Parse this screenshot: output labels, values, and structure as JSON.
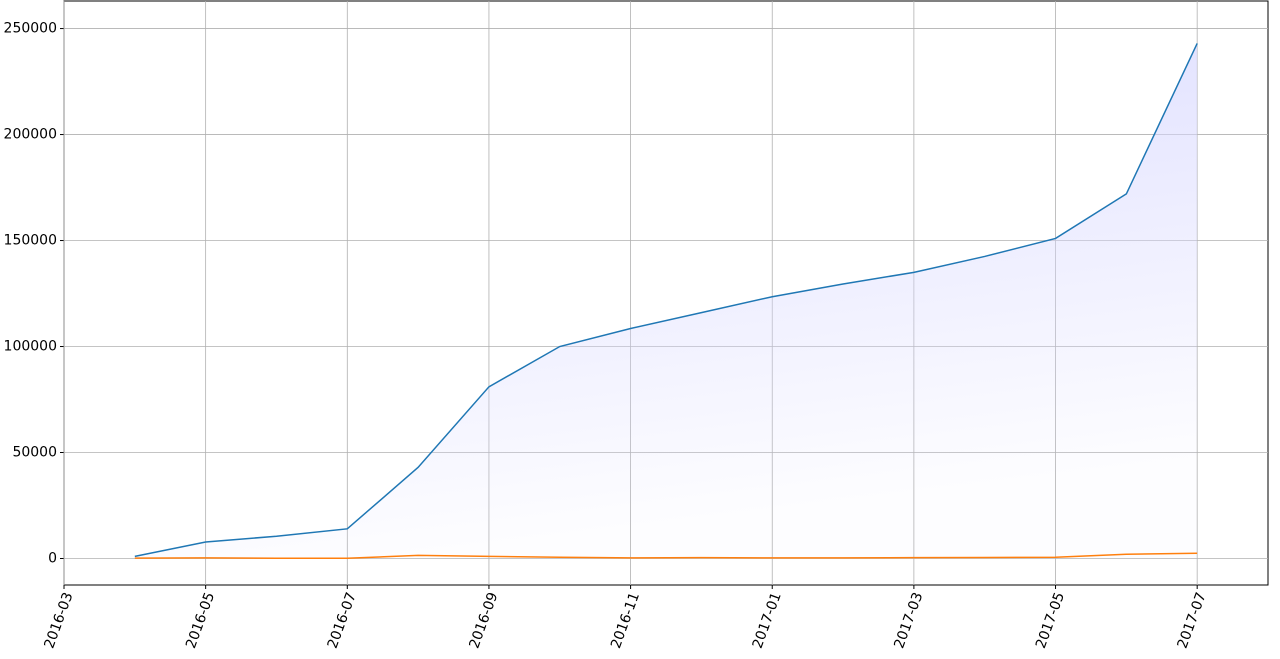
{
  "chart_data": {
    "type": "line",
    "x": [
      "2016-04",
      "2016-05",
      "2016-06",
      "2016-07",
      "2016-08",
      "2016-09",
      "2016-10",
      "2016-11",
      "2016-12",
      "2017-01",
      "2017-02",
      "2017-03",
      "2017-04",
      "2017-05",
      "2017-06",
      "2017-07"
    ],
    "series": [
      {
        "color": "#1f77b4",
        "fill": "#d8d8ff",
        "values": [
          1000,
          7800,
          10500,
          14000,
          43000,
          81000,
          100000,
          108500,
          116000,
          123500,
          129500,
          135000,
          142500,
          151000,
          172000,
          243000
        ]
      },
      {
        "color": "#ff7f0e",
        "values": [
          200,
          300,
          100,
          100,
          1500,
          1000,
          600,
          300,
          400,
          300,
          300,
          400,
          500,
          600,
          2000,
          2500
        ]
      }
    ],
    "xlim": [
      "2016-03",
      "2017-08"
    ],
    "xticks": [
      "2016-03",
      "2016-05",
      "2016-07",
      "2016-09",
      "2016-11",
      "2017-01",
      "2017-03",
      "2017-05",
      "2017-07"
    ],
    "ylim": [
      -12500,
      263000
    ],
    "yticks": [
      0,
      50000,
      100000,
      150000,
      200000,
      250000
    ],
    "grid": true
  }
}
